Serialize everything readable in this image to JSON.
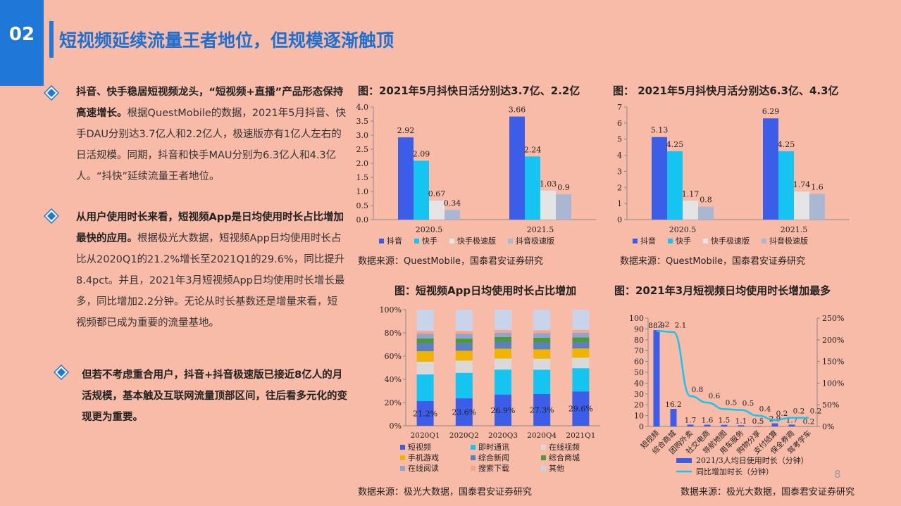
{
  "slide": {
    "number": "02",
    "title": "短视频延续流量王者地位，但规模逐渐触顶",
    "page": "8"
  },
  "bullets": [
    {
      "bold": "抖音、快手稳居短视频龙头，“短视频+直播”产品形态保持高速增长。",
      "text": "根据QuestMobile的数据，2021年5月抖音、快手DAU分别达3.7亿人和2.2亿人，极速版亦有1亿人左右的日活规模。同期，抖音和快手MAU分别为6.3亿人和4.3亿人。“抖快”延续流量王者地位。"
    },
    {
      "bold": "从用户使用时长来看，短视频App是日均使用时长占比增加最快的应用。",
      "text": "根据极光大数据，短视频App日均使用时长占比从2020Q1的21.2%增长至2021Q1的29.6%，同比提升8.4pct。并且，2021年3月短视频App日均使用时长增长最多，同比增加2.2分钟。无论从时长基数还是增量来看，短视频都已成为重要的流量基地。"
    },
    {
      "bold": "但若不考虑重合用户，抖音+抖音极速版已接近8亿人的月活规模，基本触及互联网流量顶部区间，往后看多元化的变现更为重要。",
      "text": ""
    }
  ],
  "chart_data": [
    {
      "type": "bar",
      "title": "图：2021年5月抖快日活分别达3.7亿、2.2亿",
      "source": "数据来源：QuestMobile，国泰君安证券研究",
      "categories": [
        "2020.5",
        "2021.5"
      ],
      "series": [
        {
          "name": "抖音",
          "values": [
            2.92,
            3.66
          ],
          "color": "#3b5de7"
        },
        {
          "name": "快手",
          "values": [
            2.09,
            2.24
          ],
          "color": "#16c4f2"
        },
        {
          "name": "快手极速版",
          "values": [
            0.67,
            1.03
          ],
          "color": "#e4e4e4"
        },
        {
          "name": "抖音极速版",
          "values": [
            0.34,
            0.9
          ],
          "color": "#a9b7d2"
        }
      ],
      "labels": [
        [
          "2.92",
          "3.66"
        ],
        [
          "2.09",
          "2.24"
        ],
        [
          "0.67",
          "1.03"
        ],
        [
          "0.34",
          "0.9"
        ]
      ],
      "ylim": [
        0,
        4
      ],
      "yticks": [
        "0.0",
        "0.5",
        "1.0",
        "1.5",
        "2.0",
        "2.5",
        "3.0",
        "3.5",
        "4.0"
      ],
      "legend": "bottom"
    },
    {
      "type": "bar",
      "title": "图： 2021年5月抖快月活分别达6.3亿、4.3亿",
      "source": "数据来源：QuestMobile，国泰君安证券研究",
      "categories": [
        "2020.5",
        "2021.5"
      ],
      "series": [
        {
          "name": "抖音",
          "values": [
            5.13,
            6.29
          ],
          "color": "#3b5de7"
        },
        {
          "name": "快手",
          "values": [
            4.25,
            4.25
          ],
          "color": "#16c4f2"
        },
        {
          "name": "快手极速版",
          "values": [
            1.17,
            1.74
          ],
          "color": "#e4e4e4"
        },
        {
          "name": "抖音极速版",
          "values": [
            0.8,
            1.6
          ],
          "color": "#a9b7d2"
        }
      ],
      "labels": [
        [
          "5.13",
          "6.29"
        ],
        [
          "4.25",
          "4.25"
        ],
        [
          "1.17",
          "1.74"
        ],
        [
          "0.8",
          "1.6"
        ]
      ],
      "ylim": [
        0,
        7
      ],
      "yticks": [
        "0",
        "1",
        "2",
        "3",
        "4",
        "5",
        "6",
        "7"
      ],
      "legend": "bottom"
    },
    {
      "type": "bar",
      "stacked": true,
      "title": "图：短视频App日均使用时长占比增加",
      "source": "数据来源：极光大数据，国泰君安证券研究",
      "categories": [
        "2020Q1",
        "2020Q2",
        "2020Q3",
        "2020Q4",
        "2021Q1"
      ],
      "ylim": [
        0,
        100
      ],
      "yticks": [
        "0%",
        "20%",
        "40%",
        "60%",
        "80%",
        "100%"
      ],
      "series": [
        {
          "name": "短视频",
          "values": [
            21.2,
            23.6,
            26.9,
            27.3,
            29.6
          ],
          "color": "#3b5de7"
        },
        {
          "name": "即时通讯",
          "values": [
            23.0,
            22.0,
            21.5,
            21.0,
            20.0
          ],
          "color": "#16c4f2"
        },
        {
          "name": "在线视频",
          "values": [
            11.0,
            10.5,
            9.5,
            9.5,
            9.0
          ],
          "color": "#d9d9d9"
        },
        {
          "name": "手机游戏",
          "values": [
            9.0,
            8.5,
            8.5,
            8.0,
            8.0
          ],
          "color": "#f0b400"
        },
        {
          "name": "综合新闻",
          "values": [
            7.0,
            6.5,
            6.0,
            6.0,
            5.5
          ],
          "color": "#5b7fbf"
        },
        {
          "name": "综合商城",
          "values": [
            4.0,
            4.0,
            4.0,
            4.0,
            4.0
          ],
          "color": "#4a9a3a"
        },
        {
          "name": "在线阅读",
          "values": [
            4.0,
            4.0,
            3.6,
            4.0,
            3.9
          ],
          "color": "#8fa4cf"
        },
        {
          "name": "搜索下载",
          "values": [
            2.5,
            2.5,
            2.5,
            2.5,
            2.5
          ],
          "color": "#f4a58a"
        },
        {
          "name": "其他",
          "values": [
            18.3,
            18.4,
            17.5,
            17.7,
            17.5
          ],
          "color": "#c9d3ea"
        }
      ],
      "labels": [
        "21.2%",
        "23.6%",
        "26.9%",
        "27.3%",
        "29.6%"
      ],
      "legend": "bottom"
    },
    {
      "type": "bar",
      "title": "图：2021年3月短视频日均使用时长增加最多",
      "source": "数据来源：极光大数据，国泰君安证券研究",
      "categories": [
        "短视频",
        "综合商城",
        "团购外卖",
        "社交电商",
        "导航地图",
        "用车服务",
        "购物分享",
        "支付结算",
        "保全券商",
        "驾考学车"
      ],
      "series": [
        {
          "name": "2021/3人均日使用时长（分钟）",
          "values": [
            88.9,
            16.2,
            1.7,
            1.6,
            1.5,
            1.1,
            0.5,
            2.9,
            1.7,
            0.2
          ],
          "color": "#3b5de7"
        },
        {
          "name": "同比增加时长（分钟）",
          "values": [
            2.2,
            2.1,
            0.8,
            0.6,
            0.5,
            0.5,
            0.4,
            0.2,
            0.2,
            0.2
          ],
          "type": "line",
          "axis": "right",
          "color": "#16c4f2"
        }
      ],
      "bar_labels": [
        "88.9",
        "16.2",
        "1.7",
        "1.6",
        "1.5",
        "1.1",
        "0.5",
        "2.9",
        "1.7",
        "0.2"
      ],
      "line_labels": [
        "2.2",
        "2.1",
        "0.8",
        "0.6",
        "0.5",
        "0.5",
        "0.4",
        "0.2",
        "0.2",
        "0.2"
      ],
      "ylim": [
        0,
        100
      ],
      "yticks": [
        "0",
        "10",
        "20",
        "30",
        "40",
        "50",
        "60",
        "70",
        "80",
        "90",
        "100"
      ],
      "y2lim": [
        0,
        250
      ],
      "y2ticks": [
        "0%",
        "50%",
        "100%",
        "150%",
        "200%",
        "250%"
      ],
      "legend": "bottom"
    }
  ]
}
